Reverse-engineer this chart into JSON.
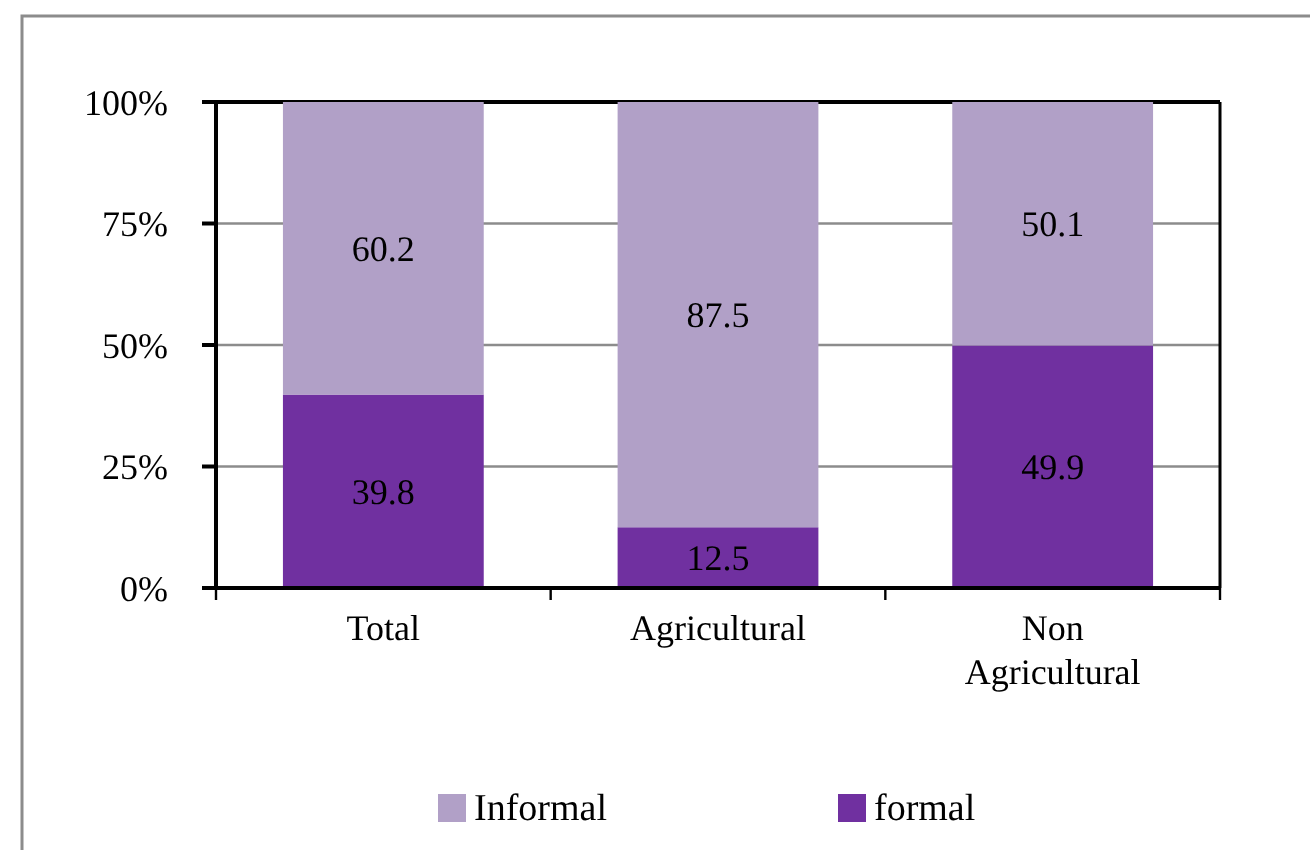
{
  "chart_data": {
    "type": "bar",
    "stacked": true,
    "categories": [
      "Total",
      "Agricultural",
      "Non Agricultural"
    ],
    "series": [
      {
        "name": "formal",
        "color": "#7030a0",
        "values": [
          39.8,
          12.5,
          49.9
        ]
      },
      {
        "name": "Informal",
        "color": "#b1a0c7",
        "values": [
          60.2,
          87.5,
          50.1
        ]
      }
    ],
    "ylim": [
      0,
      100
    ],
    "yticks": [
      {
        "value": 0,
        "label": "0%"
      },
      {
        "value": 25,
        "label": "25%"
      },
      {
        "value": 50,
        "label": "50%"
      },
      {
        "value": 75,
        "label": "75%"
      },
      {
        "value": 100,
        "label": "100%"
      }
    ],
    "grid": "y",
    "data_labels": true,
    "legend": "bottom"
  }
}
